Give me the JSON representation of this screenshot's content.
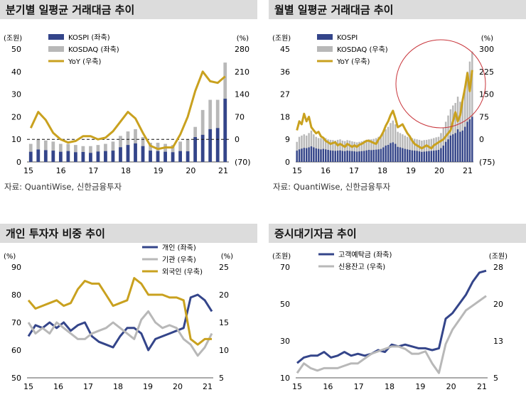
{
  "panels": [
    {
      "title": "분기별 일평균 거래대금 추이",
      "source": "자료: QuantiWise, 신한금융투자",
      "chart_data": {
        "type": "bar",
        "left_unit": "(조원)",
        "right_unit": "(%)",
        "ylim": [
          0,
          50
        ],
        "yticks": [
          0,
          10,
          20,
          30,
          40,
          50
        ],
        "y2lim": [
          -70,
          280
        ],
        "y2ticks": [
          "(70)",
          "0",
          "70",
          "140",
          "210",
          "280"
        ],
        "x_labels": [
          "15",
          "16",
          "17",
          "18",
          "19",
          "20",
          "21"
        ],
        "legend": [
          "KOSPI (좌축)",
          "KOSDAQ (좌축)",
          "YoY (우축)"
        ],
        "dashed_baseline_pct": 0,
        "series": [
          {
            "name": "KOSPI (좌축)",
            "values": [
              4.5,
              5.5,
              5.2,
              5.0,
              4.5,
              4.8,
              4.3,
              4.4,
              4.0,
              4.6,
              4.8,
              5.0,
              6.5,
              7.5,
              8.2,
              7.0,
              5.0,
              4.8,
              4.5,
              4.3,
              4.8,
              4.7,
              11.0,
              12.0,
              14.5,
              15.0,
              28.0
            ]
          },
          {
            "name": "KOSDAQ (좌축)",
            "values": [
              8.0,
              10.0,
              9.5,
              9.0,
              8.0,
              8.0,
              7.5,
              7.0,
              7.0,
              7.5,
              8.0,
              9.0,
              11.5,
              13.5,
              14.5,
              11.0,
              8.5,
              8.5,
              8.0,
              7.5,
              9.0,
              10.0,
              15.5,
              23.0,
              27.5,
              27.5,
              44.0
            ]
          },
          {
            "name": "YoY (우축)",
            "values": [
              35,
              85,
              60,
              20,
              0,
              -10,
              -5,
              10,
              10,
              0,
              5,
              25,
              55,
              85,
              65,
              20,
              -20,
              -30,
              -25,
              -25,
              15,
              70,
              150,
              210,
              180,
              175,
              195
            ]
          }
        ]
      }
    },
    {
      "title": "월별 일평균 거래대금 추이",
      "source": "자료: QuantiWise, 신한금융투자",
      "chart_data": {
        "type": "bar",
        "left_unit": "(조원)",
        "right_unit": "(%)",
        "ylim": [
          0,
          45
        ],
        "yticks": [
          0,
          9,
          18,
          27,
          36,
          45
        ],
        "y2lim": [
          -75,
          300
        ],
        "y2ticks": [
          "(75)",
          "0",
          "75",
          "150",
          "225",
          "300"
        ],
        "x_labels": [
          "15",
          "16",
          "17",
          "18",
          "19",
          "20",
          "21"
        ],
        "legend": [
          "KOSPI",
          "KOSDAQ (우축)",
          "YoY (우축)"
        ],
        "series": [
          {
            "name": "KOSPI",
            "values": [
              4.5,
              5.0,
              5.3,
              5.6,
              5.5,
              5.8,
              6.2,
              5.8,
              5.4,
              5.2,
              5.0,
              5.2,
              5.0,
              4.8,
              4.6,
              4.5,
              4.4,
              4.5,
              4.6,
              4.4,
              4.3,
              4.5,
              4.4,
              4.3,
              4.2,
              4.1,
              4.2,
              4.3,
              4.4,
              4.6,
              4.8,
              4.7,
              4.8,
              4.9,
              5.0,
              5.2,
              5.8,
              6.5,
              6.8,
              7.5,
              7.8,
              7.2,
              6.0,
              5.8,
              5.5,
              5.2,
              5.0,
              4.8,
              4.6,
              4.5,
              4.4,
              4.2,
              4.0,
              4.1,
              4.2,
              4.3,
              4.4,
              4.5,
              4.6,
              4.8,
              5.5,
              6.5,
              8.0,
              9.0,
              10.5,
              11.0,
              11.5,
              13.0,
              12.0,
              12.5,
              14.0,
              16.0,
              17.0,
              18.0
            ]
          },
          {
            "name": "KOSDAQ (우축)",
            "values": [
              8.0,
              10.0,
              10.5,
              11.0,
              10.5,
              11.5,
              12.5,
              11.0,
              10.0,
              9.5,
              9.5,
              10.0,
              9.5,
              9.0,
              8.8,
              8.7,
              8.5,
              8.8,
              9.0,
              8.5,
              8.3,
              8.7,
              8.5,
              8.2,
              8.0,
              7.8,
              8.0,
              8.2,
              8.5,
              8.8,
              9.0,
              9.0,
              9.2,
              9.5,
              10.0,
              10.5,
              11.5,
              13.0,
              14.0,
              15.5,
              16.5,
              15.0,
              12.0,
              11.5,
              11.0,
              10.5,
              10.0,
              9.8,
              9.5,
              9.2,
              9.0,
              8.8,
              8.5,
              8.7,
              8.8,
              9.0,
              9.2,
              9.5,
              9.8,
              10.0,
              11.5,
              13.5,
              16.0,
              18.5,
              21.0,
              22.5,
              23.5,
              26.0,
              24.0,
              25.0,
              30.0,
              36.0,
              40.0,
              44.0
            ]
          },
          {
            "name": "YoY (우축)",
            "values": [
              30,
              60,
              50,
              85,
              60,
              75,
              40,
              30,
              20,
              25,
              10,
              5,
              -5,
              -10,
              -15,
              -12,
              -10,
              -20,
              -15,
              -20,
              -25,
              -15,
              -20,
              -25,
              -20,
              -25,
              -18,
              -15,
              -10,
              -5,
              -5,
              -8,
              -12,
              -15,
              0,
              10,
              25,
              45,
              60,
              80,
              95,
              70,
              40,
              45,
              50,
              35,
              20,
              10,
              -5,
              -15,
              -20,
              -25,
              -30,
              -25,
              -20,
              -25,
              -30,
              -20,
              -15,
              -10,
              -5,
              0,
              10,
              20,
              30,
              60,
              90,
              60,
              80,
              130,
              170,
              220,
              160,
              230
            ]
          }
        ]
      }
    },
    {
      "title": "개인 투자자 비중 추이",
      "chart_data": {
        "type": "line",
        "left_unit": "(%)",
        "right_unit": "(%)",
        "ylim": [
          50,
          90
        ],
        "yticks": [
          50,
          60,
          70,
          80,
          90
        ],
        "y2lim": [
          5,
          25
        ],
        "y2ticks": [
          5,
          10,
          15,
          20,
          25
        ],
        "x_labels": [
          "15",
          "16",
          "17",
          "18",
          "19",
          "20",
          "21"
        ],
        "series": [
          {
            "name": "개인 (좌축)",
            "axis": "left",
            "color": "#34458a",
            "values": [
              65,
              69,
              68,
              70,
              68,
              70,
              67,
              69,
              70,
              65,
              63,
              62,
              61,
              65,
              68,
              68,
              66,
              60,
              64,
              65,
              66,
              67,
              68,
              79,
              80,
              78,
              74
            ]
          },
          {
            "name": "기관 (우축)",
            "axis": "right",
            "color": "#b8b8b8",
            "values": [
              15,
              13,
              14,
              13,
              15,
              14,
              13,
              12,
              12,
              13,
              13.5,
              14,
              15,
              14,
              13,
              12,
              15.5,
              17,
              15,
              14,
              14.5,
              14,
              12,
              11,
              9,
              10.5,
              13
            ]
          },
          {
            "name": "외국인 (우축)",
            "axis": "right",
            "color": "#c9a11f",
            "values": [
              19,
              17.5,
              18,
              18.5,
              19,
              18,
              18.5,
              21,
              22.5,
              22,
              22,
              20,
              18,
              18.5,
              19,
              23,
              22,
              20,
              20,
              20,
              19.5,
              19.5,
              19,
              12,
              11,
              12,
              12
            ]
          }
        ]
      }
    },
    {
      "title": "증시대기자금 추이",
      "chart_data": {
        "type": "line",
        "left_unit": "(조원)",
        "right_unit": "(조원)",
        "ylim": [
          10,
          70
        ],
        "yticks": [
          10,
          30,
          50,
          70
        ],
        "y2lim": [
          5,
          28
        ],
        "y2ticks": [
          5,
          13,
          20,
          28
        ],
        "x_labels": [
          "15",
          "16",
          "17",
          "18",
          "19",
          "20",
          "21"
        ],
        "series": [
          {
            "name": "고객예탁금 (좌축)",
            "axis": "left",
            "color": "#34458a",
            "values": [
              18,
              21,
              22,
              22,
              24,
              21,
              22,
              24,
              22,
              23,
              22,
              23,
              25,
              24,
              28,
              27,
              28,
              27,
              26,
              26,
              25,
              26,
              42,
              45,
              50,
              55,
              62,
              67,
              68
            ]
          },
          {
            "name": "신용잔고 (우축)",
            "axis": "right",
            "color": "#b8b8b8",
            "values": [
              6,
              8,
              7,
              6.5,
              7,
              7,
              7,
              7.5,
              8,
              8,
              9,
              10,
              10.5,
              11,
              11.5,
              11.5,
              11,
              10,
              10,
              10.5,
              8,
              6,
              12,
              15,
              17,
              19,
              20,
              21,
              22
            ]
          }
        ]
      }
    }
  ],
  "colors": {
    "kospi": "#34458a",
    "kosdaq": "#b8b8b8",
    "yoy": "#c9a11f",
    "header": "#dcdcdc",
    "highlight": "#c8343a"
  }
}
